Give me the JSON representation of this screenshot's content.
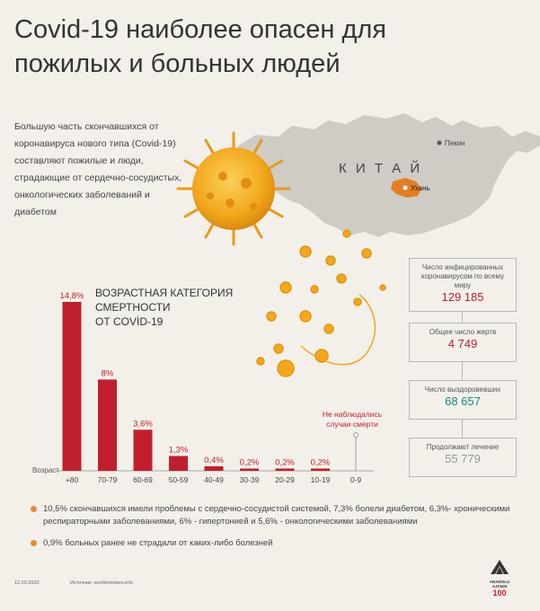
{
  "title": {
    "line1": "Covid-19 наиболее опасен для",
    "line2": "пожилых и больных людей"
  },
  "intro": "Большую часть скончавшихся от коронавируса нового типа (Covid-19) составляют пожилые и люди, страдающие от сердечно-сосудистых, онкологических заболеваний и диабетом",
  "map": {
    "country": "К И Т А Й",
    "city_beijing": "Пекин",
    "city_wuhan": "Ухань"
  },
  "colors": {
    "bar": "#c21f2e",
    "accent_red": "#c21f2e",
    "accent_green": "#1a8a7a",
    "virus": "#f2a81d",
    "dot": "#e88a2e"
  },
  "chart_data": {
    "type": "bar",
    "title_lines": [
      "ВОЗРАСТНАЯ КАТЕГОРИЯ",
      "СМЕРТНОСТИ",
      "ОТ COVİD-19"
    ],
    "xlabel": "Возраст",
    "categories": [
      "+80",
      "70-79",
      "60-69",
      "50-59",
      "40-49",
      "30-39",
      "20-29",
      "10-19",
      "0-9"
    ],
    "values": [
      14.8,
      8,
      3.6,
      1.3,
      0.4,
      0.2,
      0.2,
      0.2,
      0
    ],
    "value_labels": [
      "14,8%",
      "8%",
      "3,6%",
      "1,3%",
      "0,4%",
      "0,2%",
      "0,2%",
      "0,2%",
      ""
    ],
    "ylim": [
      0,
      14.8
    ],
    "annotation": "Не наблюдались случаи смерти"
  },
  "stats": {
    "infected_label": "Число инфицированных коронавирусом по всему миру",
    "infected_value": "129 185",
    "deaths_label": "Общее число жертв",
    "deaths_value": "4 749",
    "recovered_label": "Число выздоровевших",
    "recovered_value": "68 657",
    "treatment_label": "Продолжают лечение",
    "treatment_value": "55 779"
  },
  "notes": [
    "10,5% скончавшихся имели проблемы с сердечно-сосудистой системой, 7,3% болели диабетом, 6,3%- хроническими респираторными заболеваниями, 6% - гипертонией и 5,6% - онкологическими заболеваниями",
    "0,9% больных ранее не страдали от каких-либо болезней"
  ],
  "footer": {
    "date": "12.03.2020",
    "source": "Источник: worldometers.info"
  },
  "logo": {
    "name": "ANADOLU AJANSI",
    "anniversary": "100"
  }
}
